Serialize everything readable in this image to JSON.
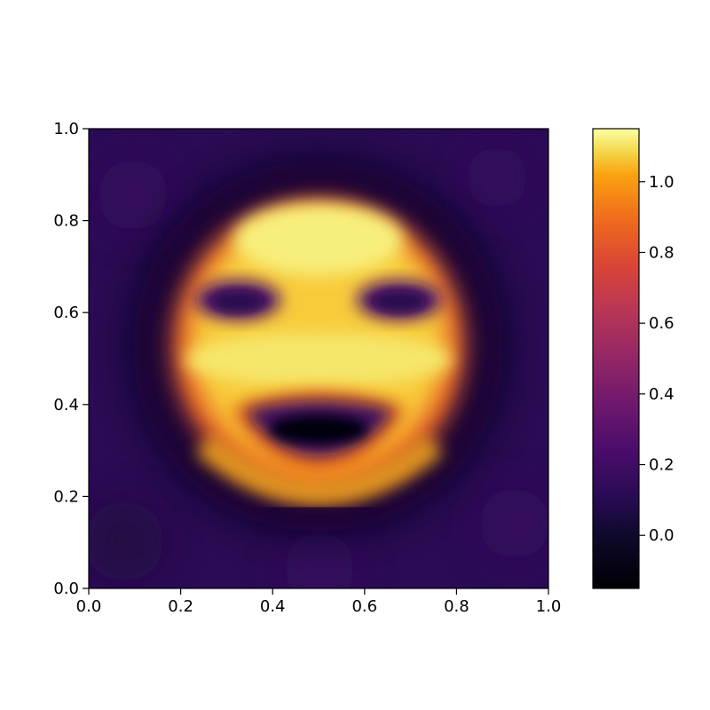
{
  "chart_data": {
    "type": "heatmap",
    "title": "",
    "xlabel": "",
    "ylabel": "",
    "xlim": [
      0.0,
      1.0
    ],
    "ylim": [
      0.0,
      1.0
    ],
    "x_ticks": [
      "0.0",
      "0.2",
      "0.4",
      "0.6",
      "0.8",
      "1.0"
    ],
    "y_ticks": [
      "0.0",
      "0.2",
      "0.4",
      "0.6",
      "0.8",
      "1.0"
    ],
    "colormap": "inferno",
    "colorbar": {
      "range": [
        -0.15,
        1.15
      ],
      "ticks": [
        "0.0",
        "0.2",
        "0.4",
        "0.6",
        "0.8",
        "1.0"
      ]
    },
    "features": [
      {
        "name": "face-ring",
        "center": [
          0.5,
          0.5
        ],
        "radius": 0.32,
        "value": 1.0
      },
      {
        "name": "left-eye",
        "center": [
          0.32,
          0.62
        ],
        "value": 0.1
      },
      {
        "name": "right-eye",
        "center": [
          0.68,
          0.62
        ],
        "value": 0.1
      },
      {
        "name": "mouth",
        "center": [
          0.5,
          0.36
        ],
        "value": -0.1
      },
      {
        "name": "background",
        "value": 0.05
      }
    ]
  }
}
